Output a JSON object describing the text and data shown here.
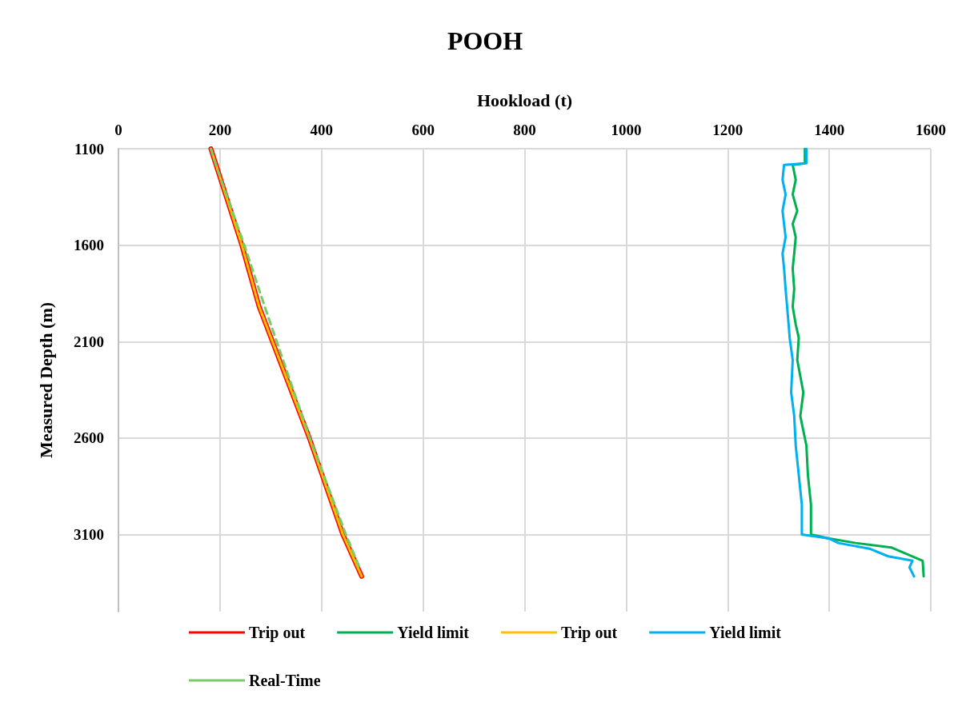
{
  "chart_data": {
    "type": "line",
    "title": "POOH",
    "xlabel": "Hookload (t)",
    "ylabel": "Measured Depth (m)",
    "xlim": [
      0,
      1600
    ],
    "xticks": [
      0,
      200,
      400,
      600,
      800,
      1000,
      1200,
      1400,
      1600
    ],
    "ylim": [
      3500,
      1100
    ],
    "yticks": [
      1100,
      1600,
      2100,
      2600,
      3100
    ],
    "grid": true,
    "legend": "bottom",
    "marker": "none",
    "series": [
      {
        "name": "Trip out",
        "color": "#ff0000",
        "line_style": "solid",
        "x": [
          182,
          243,
          277,
          376,
          442,
          479
        ],
        "values": [
          1100,
          1600,
          1918,
          2600,
          3100,
          3317
        ]
      },
      {
        "name": "Yield limit",
        "color": "#00b050",
        "line_style": "solid",
        "x": [
          1352,
          1352,
          1328,
          1334,
          1328,
          1337,
          1328,
          1334,
          1331,
          1328,
          1331,
          1328,
          1334,
          1340,
          1337,
          1349,
          1343,
          1355,
          1358,
          1364,
          1364,
          1400,
          1452,
          1522,
          1584,
          1586
        ],
        "values": [
          1100,
          1176,
          1184,
          1261,
          1337,
          1422,
          1490,
          1559,
          1644,
          1720,
          1827,
          1919,
          2011,
          2080,
          2195,
          2363,
          2486,
          2639,
          2792,
          2945,
          3100,
          3121,
          3144,
          3167,
          3236,
          3317
        ]
      },
      {
        "name": "Trip out",
        "color": "#ffc000",
        "line_style": "solid",
        "x": [
          182,
          243,
          277,
          376,
          442,
          479
        ],
        "values": [
          1100,
          1600,
          1918,
          2600,
          3100,
          3317
        ]
      },
      {
        "name": "Yield limit",
        "color": "#00b0f0",
        "line_style": "solid",
        "x": [
          1355,
          1355,
          1311,
          1308,
          1314,
          1308,
          1311,
          1314,
          1308,
          1311,
          1314,
          1317,
          1320,
          1322,
          1328,
          1325,
          1331,
          1334,
          1340,
          1346,
          1346,
          1400,
          1418,
          1481,
          1516,
          1564,
          1558,
          1567
        ],
        "values": [
          1100,
          1176,
          1184,
          1261,
          1337,
          1422,
          1490,
          1559,
          1644,
          1720,
          1827,
          1919,
          2011,
          2080,
          2195,
          2363,
          2486,
          2639,
          2792,
          2945,
          3100,
          3121,
          3144,
          3175,
          3213,
          3236,
          3270,
          3317
        ]
      },
      {
        "name": "Real-Time",
        "color": "#77cc66",
        "line_style": "dashed",
        "x": [
          182,
          192,
          248,
          288,
          332,
          377,
          448,
          476
        ],
        "values": [
          1100,
          1184,
          1600,
          1918,
          2255,
          2600,
          3100,
          3279
        ]
      }
    ]
  }
}
